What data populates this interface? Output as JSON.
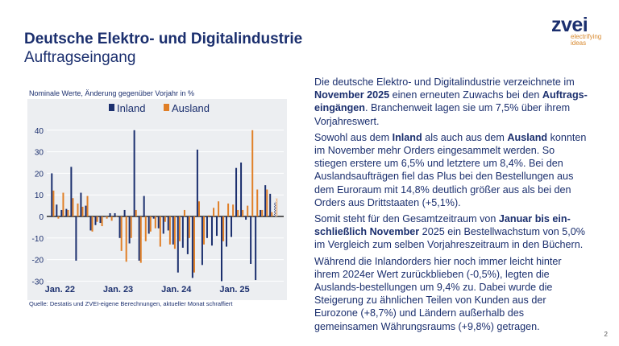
{
  "header": {
    "title": "Deutsche Elektro- und Digitalindustrie",
    "subtitle": "Auftragseingang"
  },
  "logo": {
    "word": "zvei",
    "tagline_1": "electrifying",
    "tagline_2": "ideas"
  },
  "chart_data": {
    "type": "bar",
    "title": "Nominale Werte, Änderung gegenüber Vorjahr in %",
    "ylim": [
      -30,
      40
    ],
    "yticks": [
      "-30",
      "-20",
      "-10",
      "0",
      "10",
      "20",
      "30",
      "40"
    ],
    "xtick_labels": [
      "Jan. 22",
      "Jan. 23",
      "Jan. 24",
      "Jan. 25"
    ],
    "start": "Jan. 22",
    "end": "Nov. 25",
    "legend_position": "top",
    "grid": true,
    "note": "current month hatched",
    "series": [
      {
        "name": "Inland",
        "color": "#1b2f6e",
        "values": [
          20,
          5.5,
          3,
          3.5,
          23,
          -20.5,
          11,
          5,
          -6.5,
          -4,
          -3,
          0,
          1.5,
          1.5,
          -10,
          3,
          -12.5,
          40,
          -20.5,
          9.5,
          -8,
          -1,
          -5.5,
          -8,
          -6.5,
          -13,
          -26,
          -14.5,
          -17.5,
          -28.5,
          31,
          -22.5,
          -10,
          -13.5,
          -9,
          -30,
          -14,
          -9.5,
          22.5,
          25,
          -1.5,
          -22,
          -29.5,
          3,
          14.5,
          10.5,
          6.5
        ]
      },
      {
        "name": "Ausland",
        "color": "#e07f27",
        "values": [
          12,
          -1,
          11,
          3,
          8.5,
          6,
          4.5,
          9.5,
          -7,
          -2.5,
          -4.5,
          -1,
          -2,
          0,
          -16,
          -21,
          -10,
          3,
          -21.5,
          -11.5,
          -7,
          -5.5,
          -14,
          -2.5,
          -13,
          -15,
          -11.5,
          3,
          -10,
          -26,
          7,
          -13,
          0.5,
          4,
          7,
          -11.5,
          6,
          5.5,
          3,
          3,
          5,
          40,
          12.5,
          3,
          12.5,
          2,
          8.4
        ]
      }
    ],
    "source": "Quelle: Destatis und ZVEI-eigene Berechnungen, aktueller Monat schraffiert"
  },
  "text": {
    "p1_a": "Die deutsche Elektro- und Digitalindustrie verzeichnete im ",
    "p1_b": "November 2025",
    "p1_c": " einen erneuten Zuwachs bei den ",
    "p1_d": "Auftrags-eingängen",
    "p1_e": ". Branchenweit lagen sie um 7,5% über ihrem Vorjahreswert.",
    "p2_a": "Sowohl aus dem ",
    "p2_b": "Inland",
    "p2_c": " als auch aus dem ",
    "p2_d": "Ausland",
    "p2_e": " konnten im November mehr Orders eingesammelt werden. So stiegen erstere um 6,5% und letztere um 8,4%. Bei den Auslandsaufträgen fiel das Plus bei den Bestellungen aus dem Euroraum mit 14,8% deutlich größer aus als bei den Orders aus Drittstaaten (+5,1%).",
    "p3_a": "Somit steht für den Gesamtzeitraum von ",
    "p3_b": "Januar bis ein-schließlich November",
    "p3_c": " 2025 ein Bestellwachstum von 5,0% im Vergleich zum selben Vorjahreszeitraum in den Büchern.",
    "p4": "Während die Inlandorders hier noch immer leicht hinter ihrem 2024er Wert zurückblieben (-0,5%), legten die Auslands-bestellungen um 9,4% zu. Dabei wurde die Steigerung zu ähnlichen Teilen von Kunden aus der Eurozone (+8,7%) und Ländern außerhalb des gemeinsamen Währungsraums (+9,8%) getragen."
  },
  "page_number": "2"
}
